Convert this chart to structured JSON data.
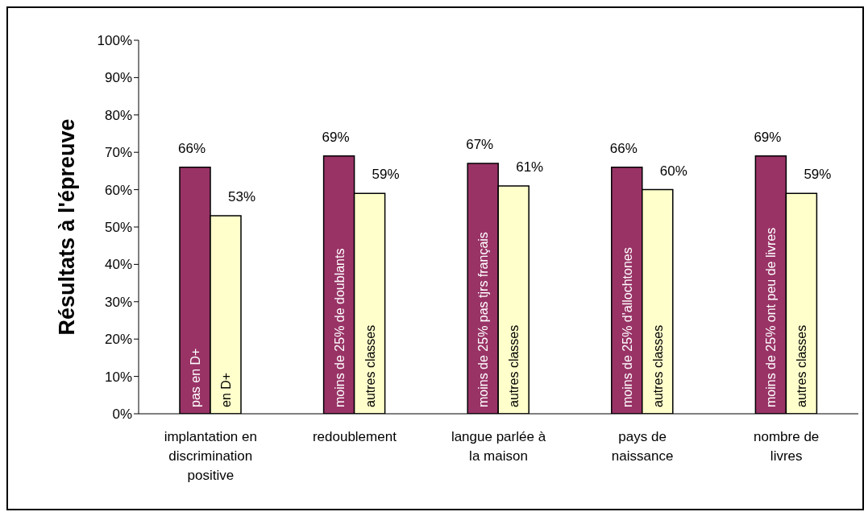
{
  "chart_data": {
    "type": "bar",
    "ylabel": "Résultats à l'épreuve",
    "categories": [
      "implantation en discrimination positive",
      "redoublement",
      "langue parlée à la maison",
      "pays de naissance",
      "nombre de livres"
    ],
    "series": [
      {
        "color": "#993366",
        "values": [
          66,
          69,
          67,
          66,
          69
        ],
        "value_labels": [
          "66%",
          "69%",
          "67%",
          "66%",
          "69%"
        ]
      },
      {
        "color": "#ffffcc",
        "values": [
          53,
          59,
          61,
          60,
          59
        ],
        "value_labels": [
          "53%",
          "59%",
          "61%",
          "60%",
          "59%"
        ]
      }
    ],
    "annotations": [
      "pas en D+",
      "en D+",
      "moins de 25% de doublants",
      "autres classes",
      "moins de 25% pas tjrs français",
      "autres classes",
      "moins de 25% d'allochtones",
      "autres classes",
      "moins de 25% ont peu de livres",
      "autres classes"
    ],
    "ylim": [
      0,
      100
    ],
    "yticks": [
      {
        "value": 0,
        "label": "0%"
      },
      {
        "value": 10,
        "label": "10%"
      },
      {
        "value": 20,
        "label": "20%"
      },
      {
        "value": 30,
        "label": "30%"
      },
      {
        "value": 40,
        "label": "40%"
      },
      {
        "value": 50,
        "label": "50%"
      },
      {
        "value": 60,
        "label": "60%"
      },
      {
        "value": 70,
        "label": "70%"
      },
      {
        "value": 80,
        "label": "80%"
      },
      {
        "value": 90,
        "label": "90%"
      },
      {
        "value": 100,
        "label": "100%"
      }
    ],
    "grid": false,
    "legend": false
  }
}
